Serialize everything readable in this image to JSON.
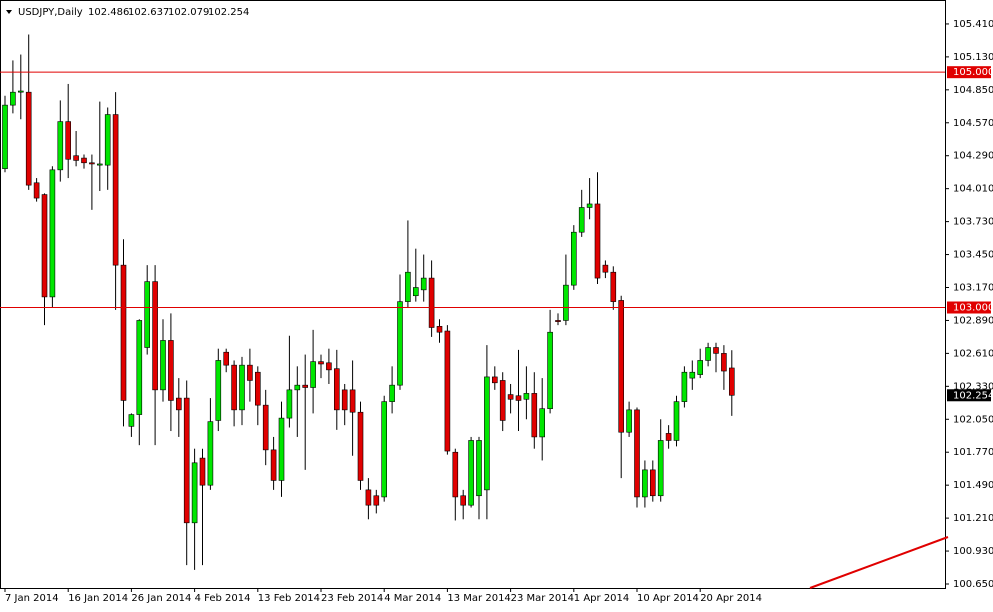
{
  "chart_data": {
    "type": "candlestick",
    "symbol": "USDJPY,Daily",
    "header_values": [
      {
        "value": 102.486,
        "label": "102.486"
      },
      {
        "value": 102.637,
        "label": "102.637"
      },
      {
        "value": 102.079,
        "label": "102.079"
      },
      {
        "value": 102.254,
        "label": "102.254"
      }
    ],
    "categories": [
      "7 Jan 2014",
      null,
      null,
      null,
      null,
      null,
      null,
      null,
      "16 Jan 2014",
      null,
      null,
      null,
      null,
      null,
      null,
      null,
      "26 Jan 2014",
      null,
      null,
      null,
      null,
      null,
      null,
      null,
      "4 Feb 2014",
      null,
      null,
      null,
      null,
      null,
      null,
      null,
      "13 Feb 2014",
      null,
      null,
      null,
      null,
      null,
      null,
      null,
      "23 Feb 2014",
      null,
      null,
      null,
      null,
      null,
      null,
      null,
      "4 Mar 2014",
      null,
      null,
      null,
      null,
      null,
      null,
      null,
      "13 Mar 2014",
      null,
      null,
      null,
      null,
      null,
      null,
      null,
      "23 Mar 2014",
      null,
      null,
      null,
      null,
      null,
      null,
      null,
      "1 Apr 2014",
      null,
      null,
      null,
      null,
      null,
      null,
      null,
      "10 Apr 2014",
      null,
      null,
      null,
      null,
      null,
      null,
      null,
      "20 Apr 2014",
      null,
      null,
      null,
      null
    ],
    "open": [
      104.18,
      104.72,
      104.83,
      104.83,
      104.06,
      103.96,
      103.09,
      104.17,
      104.58,
      104.29,
      104.27,
      104.23,
      104.21,
      104.21,
      104.64,
      103.36,
      101.99,
      102.09,
      102.66,
      103.22,
      102.3,
      102.72,
      102.23,
      102.23,
      101.17,
      101.72,
      101.49,
      102.04,
      102.62,
      102.51,
      102.13,
      102.51,
      102.45,
      102.17,
      101.79,
      101.53,
      102.06,
      102.3,
      102.34,
      102.32,
      102.54,
      102.53,
      102.48,
      102.3,
      102.3,
      102.11,
      101.45,
      101.4,
      101.39,
      102.2,
      102.34,
      103.05,
      103.1,
      103.15,
      103.25,
      102.84,
      102.8,
      101.77,
      101.4,
      101.32,
      101.4,
      101.45,
      102.41,
      102.38,
      102.26,
      102.25,
      102.22,
      102.27,
      101.9,
      102.14,
      102.89,
      102.89,
      103.19,
      103.64,
      103.85,
      103.88,
      103.36,
      103.3,
      103.06,
      101.94,
      102.13,
      101.39,
      101.62,
      101.4,
      101.93,
      101.87,
      102.2,
      102.4,
      102.43,
      102.55,
      102.66,
      102.61,
      102.486
    ],
    "high": [
      104.8,
      105.1,
      105.15,
      105.32,
      104.1,
      103.97,
      104.2,
      104.76,
      104.9,
      104.5,
      104.3,
      104.3,
      104.75,
      104.7,
      104.83,
      103.58,
      102.1,
      102.9,
      103.36,
      103.36,
      102.9,
      102.95,
      102.4,
      102.38,
      101.8,
      101.8,
      102.23,
      102.65,
      102.65,
      102.55,
      102.58,
      102.65,
      102.5,
      102.3,
      101.9,
      102.2,
      102.76,
      102.5,
      102.6,
      102.81,
      102.6,
      102.65,
      102.64,
      102.35,
      102.55,
      102.2,
      101.55,
      101.45,
      102.25,
      102.5,
      103.28,
      103.74,
      103.5,
      103.45,
      103.4,
      102.9,
      102.85,
      101.8,
      101.45,
      101.9,
      101.9,
      102.68,
      102.5,
      102.45,
      102.35,
      102.64,
      102.5,
      102.45,
      102.4,
      102.98,
      102.95,
      103.45,
      103.7,
      104.0,
      104.1,
      104.15,
      103.4,
      103.35,
      103.1,
      102.2,
      102.15,
      101.7,
      101.7,
      102.05,
      102.0,
      102.25,
      102.5,
      102.55,
      102.65,
      102.7,
      102.7,
      102.68,
      102.637
    ],
    "low": [
      104.15,
      104.65,
      104.6,
      104.0,
      103.9,
      102.85,
      103.0,
      104.07,
      104.1,
      104.2,
      104.18,
      103.83,
      103.99,
      104.0,
      102.98,
      101.99,
      101.9,
      101.83,
      102.6,
      101.83,
      102.2,
      101.95,
      101.9,
      100.81,
      100.77,
      100.81,
      101.45,
      101.95,
      102.45,
      101.99,
      102.0,
      102.2,
      102.0,
      101.66,
      101.45,
      101.39,
      101.98,
      101.9,
      101.62,
      102.1,
      102.4,
      102.35,
      101.96,
      102.0,
      101.74,
      101.45,
      101.2,
      101.25,
      101.35,
      102.1,
      102.3,
      103.0,
      103.05,
      103.05,
      102.75,
      102.7,
      101.75,
      101.19,
      101.2,
      101.3,
      101.2,
      101.2,
      102.3,
      101.95,
      102.1,
      101.95,
      102.05,
      101.8,
      101.7,
      102.1,
      102.85,
      102.85,
      103.15,
      103.6,
      103.75,
      103.2,
      103.25,
      102.98,
      101.55,
      101.9,
      101.3,
      101.3,
      101.35,
      101.35,
      101.8,
      101.82,
      102.15,
      102.3,
      102.4,
      102.5,
      102.45,
      102.3,
      102.079
    ],
    "close": [
      104.72,
      104.83,
      104.84,
      104.04,
      103.93,
      103.09,
      104.17,
      104.58,
      104.26,
      104.25,
      104.23,
      104.22,
      104.22,
      104.64,
      103.36,
      102.21,
      102.09,
      102.89,
      103.22,
      102.3,
      102.72,
      102.21,
      102.13,
      101.17,
      101.68,
      101.49,
      102.03,
      102.55,
      102.51,
      102.13,
      102.51,
      102.38,
      102.17,
      101.79,
      101.53,
      102.06,
      102.3,
      102.34,
      102.32,
      102.54,
      102.52,
      102.47,
      102.13,
      102.13,
      102.11,
      101.53,
      101.32,
      101.32,
      102.2,
      102.34,
      103.05,
      103.3,
      103.17,
      103.25,
      102.83,
      102.79,
      101.78,
      101.39,
      101.32,
      101.87,
      101.87,
      102.41,
      102.36,
      102.04,
      102.22,
      102.21,
      102.27,
      101.9,
      102.14,
      102.79,
      102.88,
      103.19,
      103.64,
      103.85,
      103.88,
      103.25,
      103.3,
      103.05,
      101.94,
      102.13,
      101.39,
      101.62,
      101.4,
      101.87,
      101.87,
      102.2,
      102.45,
      102.45,
      102.55,
      102.66,
      102.61,
      102.46,
      102.254
    ],
    "up_color": "#00e600",
    "down_color": "#e00000",
    "wick_color": "#000000",
    "ylim": [
      100.616,
      105.571
    ],
    "yticks": [
      {
        "value": 105.41,
        "label": "105.410"
      },
      {
        "value": 105.13,
        "label": "105.130"
      },
      {
        "value": 104.85,
        "label": "104.850"
      },
      {
        "value": 104.57,
        "label": "104.570"
      },
      {
        "value": 104.29,
        "label": "104.290"
      },
      {
        "value": 104.01,
        "label": "104.010"
      },
      {
        "value": 103.73,
        "label": "103.730"
      },
      {
        "value": 103.45,
        "label": "103.450"
      },
      {
        "value": 103.17,
        "label": "103.170"
      },
      {
        "value": 102.89,
        "label": "102.890"
      },
      {
        "value": 102.61,
        "label": "102.610"
      },
      {
        "value": 102.33,
        "label": "102.330"
      },
      {
        "value": 102.05,
        "label": "102.050"
      },
      {
        "value": 101.77,
        "label": "101.770"
      },
      {
        "value": 101.49,
        "label": "101.490"
      },
      {
        "value": 101.21,
        "label": "101.210"
      },
      {
        "value": 100.93,
        "label": "100.930"
      },
      {
        "value": 100.65,
        "label": "100.650"
      }
    ],
    "hlines": [
      {
        "value": 105.0,
        "label": "105.000"
      },
      {
        "value": 103.0,
        "label": "103.000"
      }
    ],
    "hline_color": "#e00000",
    "last_price": {
      "value": 102.254,
      "label": "102.254"
    },
    "grid": false
  }
}
